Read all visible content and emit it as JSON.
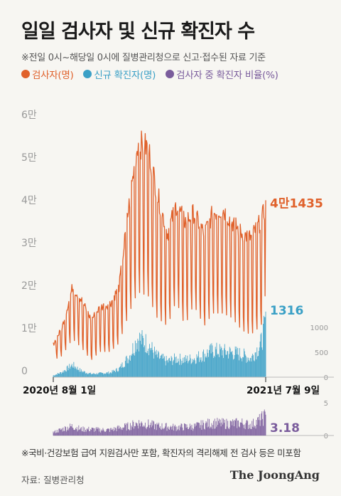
{
  "title": "일일 검사자 및 신규 확진자 수",
  "note": "※전일 0시~해당일 0시에 질병관리청으로 신고·접수된 자료 기준",
  "legend": [
    {
      "label": "검사자(명)",
      "color": "#e0612b"
    },
    {
      "label": "신규 확진자(명)",
      "color": "#3ba0c6"
    },
    {
      "label": "검사자 중 확진자 비율(%)",
      "color": "#7a5c9c"
    }
  ],
  "chart_data": [
    {
      "type": "line",
      "x_start": "2020-08-01",
      "x_end": "2021-07-09",
      "x_ticks": [
        "2020년 8월 1일",
        "2021년 7월 9일"
      ],
      "ylim": [
        0,
        65000
      ],
      "y_ticks": [
        {
          "value": 0,
          "label": "0"
        },
        {
          "value": 10000,
          "label": "1만"
        },
        {
          "value": 20000,
          "label": "2만"
        },
        {
          "value": 30000,
          "label": "3만"
        },
        {
          "value": 40000,
          "label": "4만"
        },
        {
          "value": 50000,
          "label": "5만"
        },
        {
          "value": 60000,
          "label": "6만"
        }
      ],
      "series": [
        {
          "name": "검사자(명)",
          "color": "#e0612b",
          "type": "line",
          "end_label": "4만1435",
          "end_value": 41435,
          "weekly_x": [
            "2020-08-01",
            "2020-08-15",
            "2020-09-01",
            "2020-09-15",
            "2020-10-01",
            "2020-10-15",
            "2020-11-01",
            "2020-11-15",
            "2020-12-01",
            "2020-12-15",
            "2021-01-01",
            "2021-01-15",
            "2021-02-01",
            "2021-02-15",
            "2021-03-01",
            "2021-03-15",
            "2021-04-01",
            "2021-04-15",
            "2021-05-01",
            "2021-05-15",
            "2021-06-01",
            "2021-06-15",
            "2021-07-01",
            "2021-07-09"
          ],
          "weekday_peak": [
            8000,
            12000,
            22000,
            19000,
            14000,
            17000,
            18000,
            22000,
            42000,
            57000,
            56000,
            45000,
            35000,
            42000,
            38000,
            40000,
            35000,
            40000,
            41000,
            38000,
            35000,
            34000,
            38000,
            41435
          ],
          "weekend_low": [
            4000,
            5000,
            9000,
            7000,
            4000,
            6000,
            6000,
            8000,
            15000,
            20000,
            19000,
            14000,
            12000,
            18000,
            12000,
            17000,
            12000,
            15000,
            15000,
            14000,
            11000,
            10000,
            12000,
            15000
          ]
        },
        {
          "name": "신규 확진자(명)",
          "color": "#3ba0c6",
          "type": "bar",
          "end_label": "1316",
          "end_value": 1316,
          "ylim": [
            0,
            1000
          ],
          "y_ticks": [
            0,
            500,
            1000
          ],
          "weekly_x": [
            "2020-08-01",
            "2020-08-15",
            "2020-09-01",
            "2020-09-15",
            "2020-10-01",
            "2020-10-15",
            "2020-11-01",
            "2020-11-15",
            "2020-12-01",
            "2020-12-15",
            "2021-01-01",
            "2021-01-15",
            "2021-02-01",
            "2021-02-15",
            "2021-03-01",
            "2021-03-15",
            "2021-04-01",
            "2021-04-15",
            "2021-05-01",
            "2021-05-15",
            "2021-06-01",
            "2021-06-15",
            "2021-07-01",
            "2021-07-09"
          ],
          "level": [
            40,
            120,
            300,
            150,
            80,
            90,
            110,
            200,
            500,
            950,
            800,
            500,
            380,
            450,
            420,
            450,
            550,
            650,
            620,
            600,
            550,
            450,
            800,
            1316
          ]
        }
      ]
    },
    {
      "type": "bar",
      "name": "검사자 중 확진자 비율(%)",
      "color": "#7a5c9c",
      "ylim": [
        0,
        5
      ],
      "y_ticks": [
        0,
        5
      ],
      "end_label": "3.18",
      "end_value": 3.18,
      "weekly_x": [
        "2020-08-01",
        "2020-08-15",
        "2020-09-01",
        "2020-09-15",
        "2020-10-01",
        "2020-10-15",
        "2020-11-01",
        "2020-11-15",
        "2020-12-01",
        "2020-12-15",
        "2021-01-01",
        "2021-01-15",
        "2021-02-01",
        "2021-02-15",
        "2021-03-01",
        "2021-03-15",
        "2021-04-01",
        "2021-04-15",
        "2021-05-01",
        "2021-05-15",
        "2021-06-01",
        "2021-06-15",
        "2021-07-01",
        "2021-07-09"
      ],
      "level": [
        0.5,
        1.0,
        1.5,
        1.0,
        1.0,
        0.9,
        0.9,
        1.2,
        1.5,
        2.0,
        1.8,
        1.5,
        1.4,
        1.3,
        1.4,
        1.4,
        1.8,
        2.0,
        1.9,
        1.9,
        2.0,
        1.7,
        2.5,
        3.18
      ]
    }
  ],
  "footnote": "※국비·건강보험 급여 지원검사만 포함, 확진자의 격리해제 전 검사 등은 미포함",
  "source": "자료: 질병관리청",
  "brand": "The JoongAng"
}
